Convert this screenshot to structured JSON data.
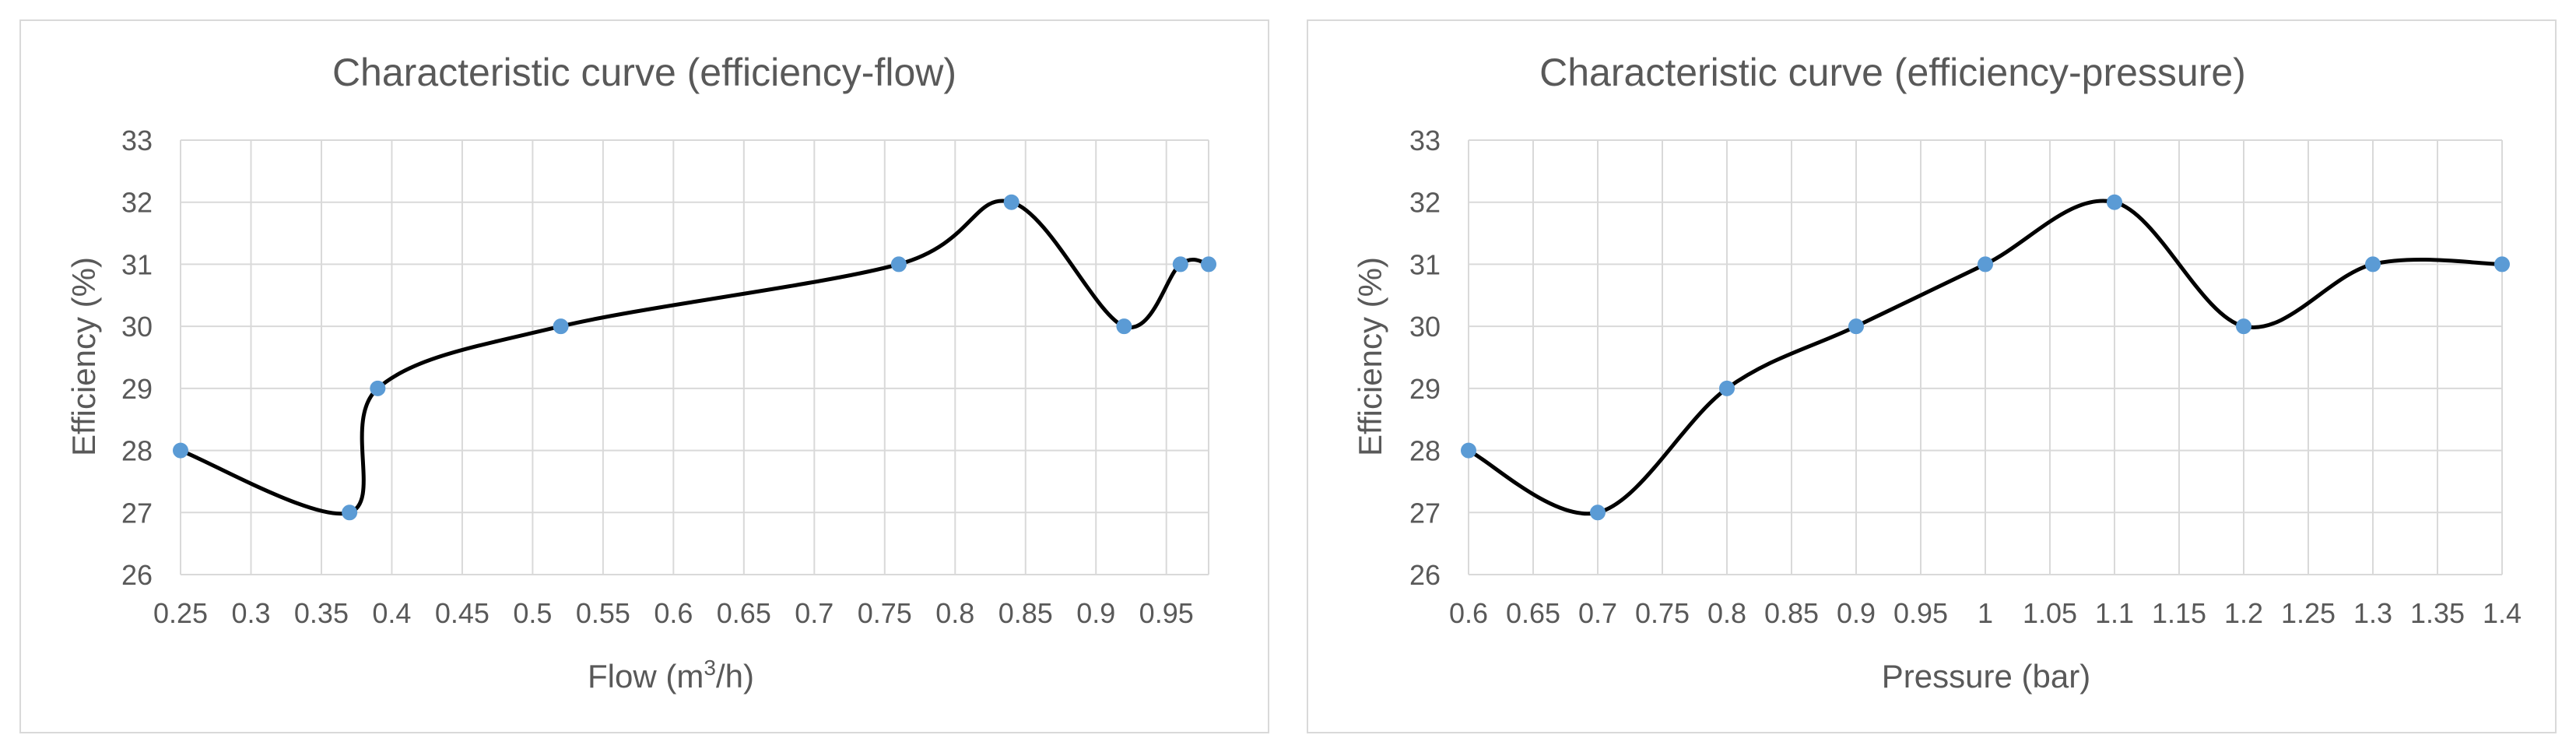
{
  "chart_data": [
    {
      "type": "scatter",
      "title": "Characteristic curve (efficiency-flow)",
      "xlabel_prefix": "Flow (m",
      "xlabel_sup": "3",
      "xlabel_suffix": "/h)",
      "ylabel": "Efficiency (%)",
      "xlim": [
        0.25,
        0.98
      ],
      "ylim": [
        26,
        33
      ],
      "x_ticks": [
        "0.25",
        "0.3",
        "0.35",
        "0.4",
        "0.45",
        "0.5",
        "0.55",
        "0.6",
        "0.65",
        "0.7",
        "0.75",
        "0.8",
        "0.85",
        "0.9",
        "0.95"
      ],
      "y_ticks": [
        "26",
        "27",
        "28",
        "29",
        "30",
        "31",
        "32",
        "33"
      ],
      "grid": true,
      "smooth_line": true,
      "series": [
        {
          "x": [
            0.25,
            0.37,
            0.39,
            0.52,
            0.76,
            0.84,
            0.92,
            0.96,
            0.98
          ],
          "y": [
            28,
            27,
            29,
            30,
            31,
            32,
            30,
            31,
            31
          ]
        }
      ]
    },
    {
      "type": "scatter",
      "title": "Characteristic curve (efficiency-pressure)",
      "xlabel": "Pressure (bar)",
      "ylabel": "Efficiency (%)",
      "xlim": [
        0.6,
        1.4
      ],
      "ylim": [
        26,
        33
      ],
      "x_ticks": [
        "0.6",
        "0.65",
        "0.7",
        "0.75",
        "0.8",
        "0.85",
        "0.9",
        "0.95",
        "1",
        "1.05",
        "1.1",
        "1.15",
        "1.2",
        "1.25",
        "1.3",
        "1.35",
        "1.4"
      ],
      "y_ticks": [
        "26",
        "27",
        "28",
        "29",
        "30",
        "31",
        "32",
        "33"
      ],
      "grid": true,
      "smooth_line": true,
      "series": [
        {
          "x": [
            0.6,
            0.7,
            0.8,
            0.9,
            1.0,
            1.1,
            1.2,
            1.3,
            1.4
          ],
          "y": [
            28,
            27,
            29,
            30,
            31,
            32,
            30,
            31,
            31
          ]
        }
      ]
    }
  ],
  "colors": {
    "marker": "#5b9bd5",
    "line": "#000000",
    "grid": "#d9d9d9",
    "text": "#595959"
  }
}
